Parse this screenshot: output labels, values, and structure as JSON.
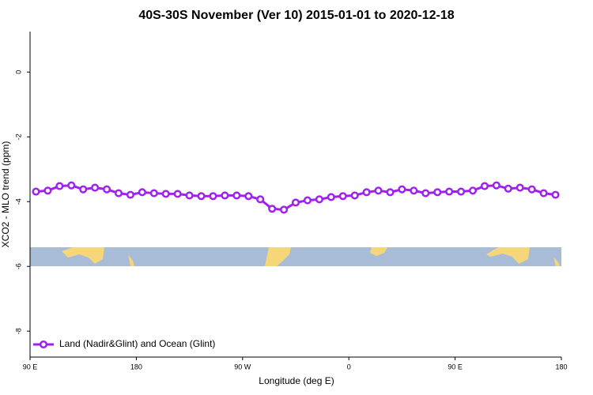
{
  "chart_data": {
    "type": "line",
    "title": "40S-30S November (Ver 10)   2015-01-01 to 2020-12-18",
    "x_label": "Longitude (deg E)",
    "y_label": "XCO2 - MLO trend (ppm)",
    "xlim": [
      90,
      540
    ],
    "xticks": [
      {
        "value": 90,
        "label": "90 E"
      },
      {
        "value": 180,
        "label": "180"
      },
      {
        "value": 270,
        "label": "90 W"
      },
      {
        "value": 360,
        "label": "0"
      },
      {
        "value": 450,
        "label": "90 E"
      },
      {
        "value": 540,
        "label": "180"
      }
    ],
    "ylim": [
      -8.8,
      1.25
    ],
    "yticks": [
      0,
      -2,
      -4,
      -6,
      -8
    ],
    "legend": "bottom-left",
    "x": [
      95,
      105,
      115,
      125,
      135,
      145,
      155,
      165,
      175,
      185,
      195,
      205,
      215,
      225,
      235,
      245,
      255,
      265,
      275,
      285,
      295,
      305,
      315,
      325,
      335,
      345,
      355,
      365,
      375,
      385,
      395,
      405,
      415,
      425,
      435,
      445,
      455,
      465,
      475,
      485,
      495,
      505,
      515,
      525,
      535
    ],
    "series": [
      {
        "name": "Land (Nadir&Glint) and Ocean (Glint)",
        "color": "#a020f0",
        "values": [
          -3.69,
          -3.66,
          -3.52,
          -3.5,
          -3.62,
          -3.57,
          -3.62,
          -3.74,
          -3.79,
          -3.71,
          -3.74,
          -3.76,
          -3.76,
          -3.81,
          -3.83,
          -3.83,
          -3.81,
          -3.81,
          -3.83,
          -3.93,
          -4.22,
          -4.25,
          -4.03,
          -3.96,
          -3.93,
          -3.86,
          -3.83,
          -3.81,
          -3.71,
          -3.66,
          -3.71,
          -3.62,
          -3.66,
          -3.74,
          -3.71,
          -3.69,
          -3.69,
          -3.66,
          -3.52,
          -3.5,
          -3.6,
          -3.57,
          -3.62,
          -3.74,
          -3.79
        ]
      }
    ]
  }
}
